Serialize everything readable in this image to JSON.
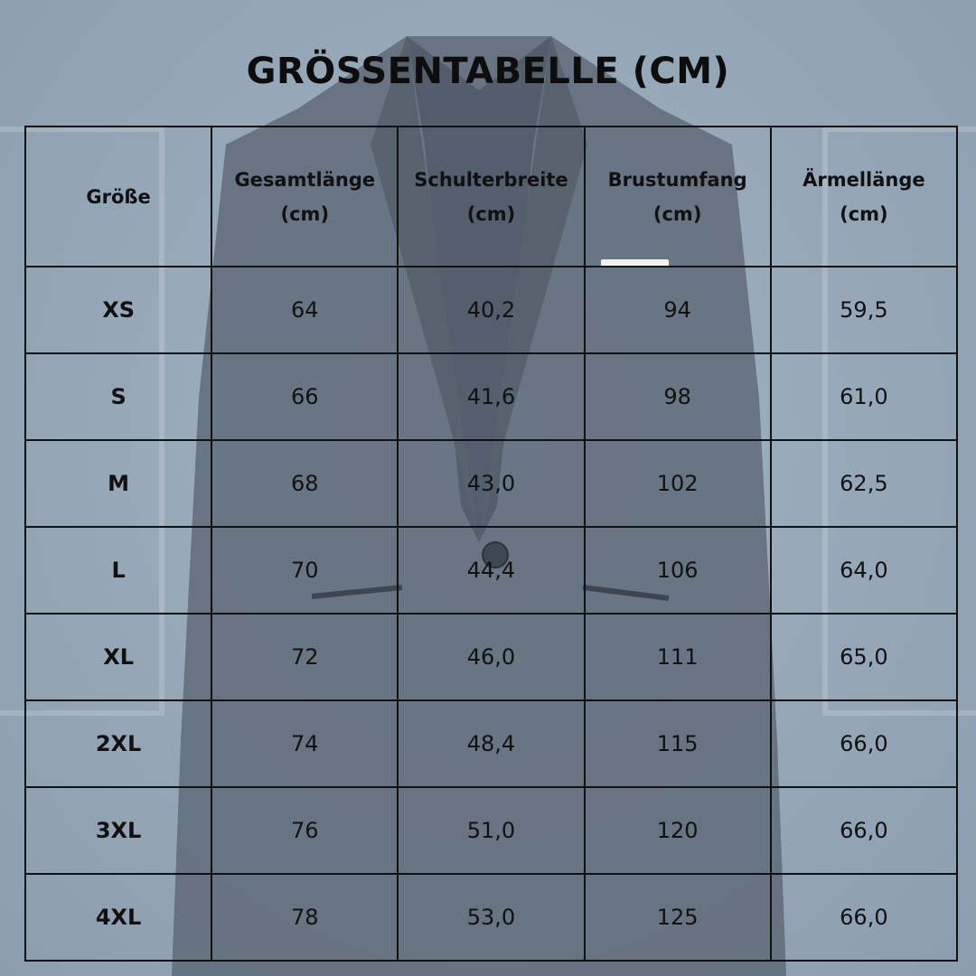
{
  "title": "GRÖSSENTABELLE (CM)",
  "colors": {
    "background": "#8fa2b3",
    "jacket": "#5f6b78",
    "text": "#111111",
    "grid": "#111111"
  },
  "headers": [
    {
      "line1": "Größe",
      "line2": ""
    },
    {
      "line1": "Gesamtlänge",
      "line2": "(cm)"
    },
    {
      "line1": "Schulterbreite",
      "line2": "(cm)"
    },
    {
      "line1": "Brustumfang",
      "line2": "(cm)"
    },
    {
      "line1": "Ärmellänge",
      "line2": "(cm)"
    }
  ],
  "rows": [
    [
      "XS",
      "64",
      "40,2",
      "94",
      "59,5"
    ],
    [
      "S",
      "66",
      "41,6",
      "98",
      "61,0"
    ],
    [
      "M",
      "68",
      "43,0",
      "102",
      "62,5"
    ],
    [
      "L",
      "70",
      "44,4",
      "106",
      "64,0"
    ],
    [
      "XL",
      "72",
      "46,0",
      "111",
      "65,0"
    ],
    [
      "2XL",
      "74",
      "48,4",
      "115",
      "66,0"
    ],
    [
      "3XL",
      "76",
      "51,0",
      "120",
      "66,0"
    ],
    [
      "4XL",
      "78",
      "53,0",
      "125",
      "66,0"
    ]
  ]
}
